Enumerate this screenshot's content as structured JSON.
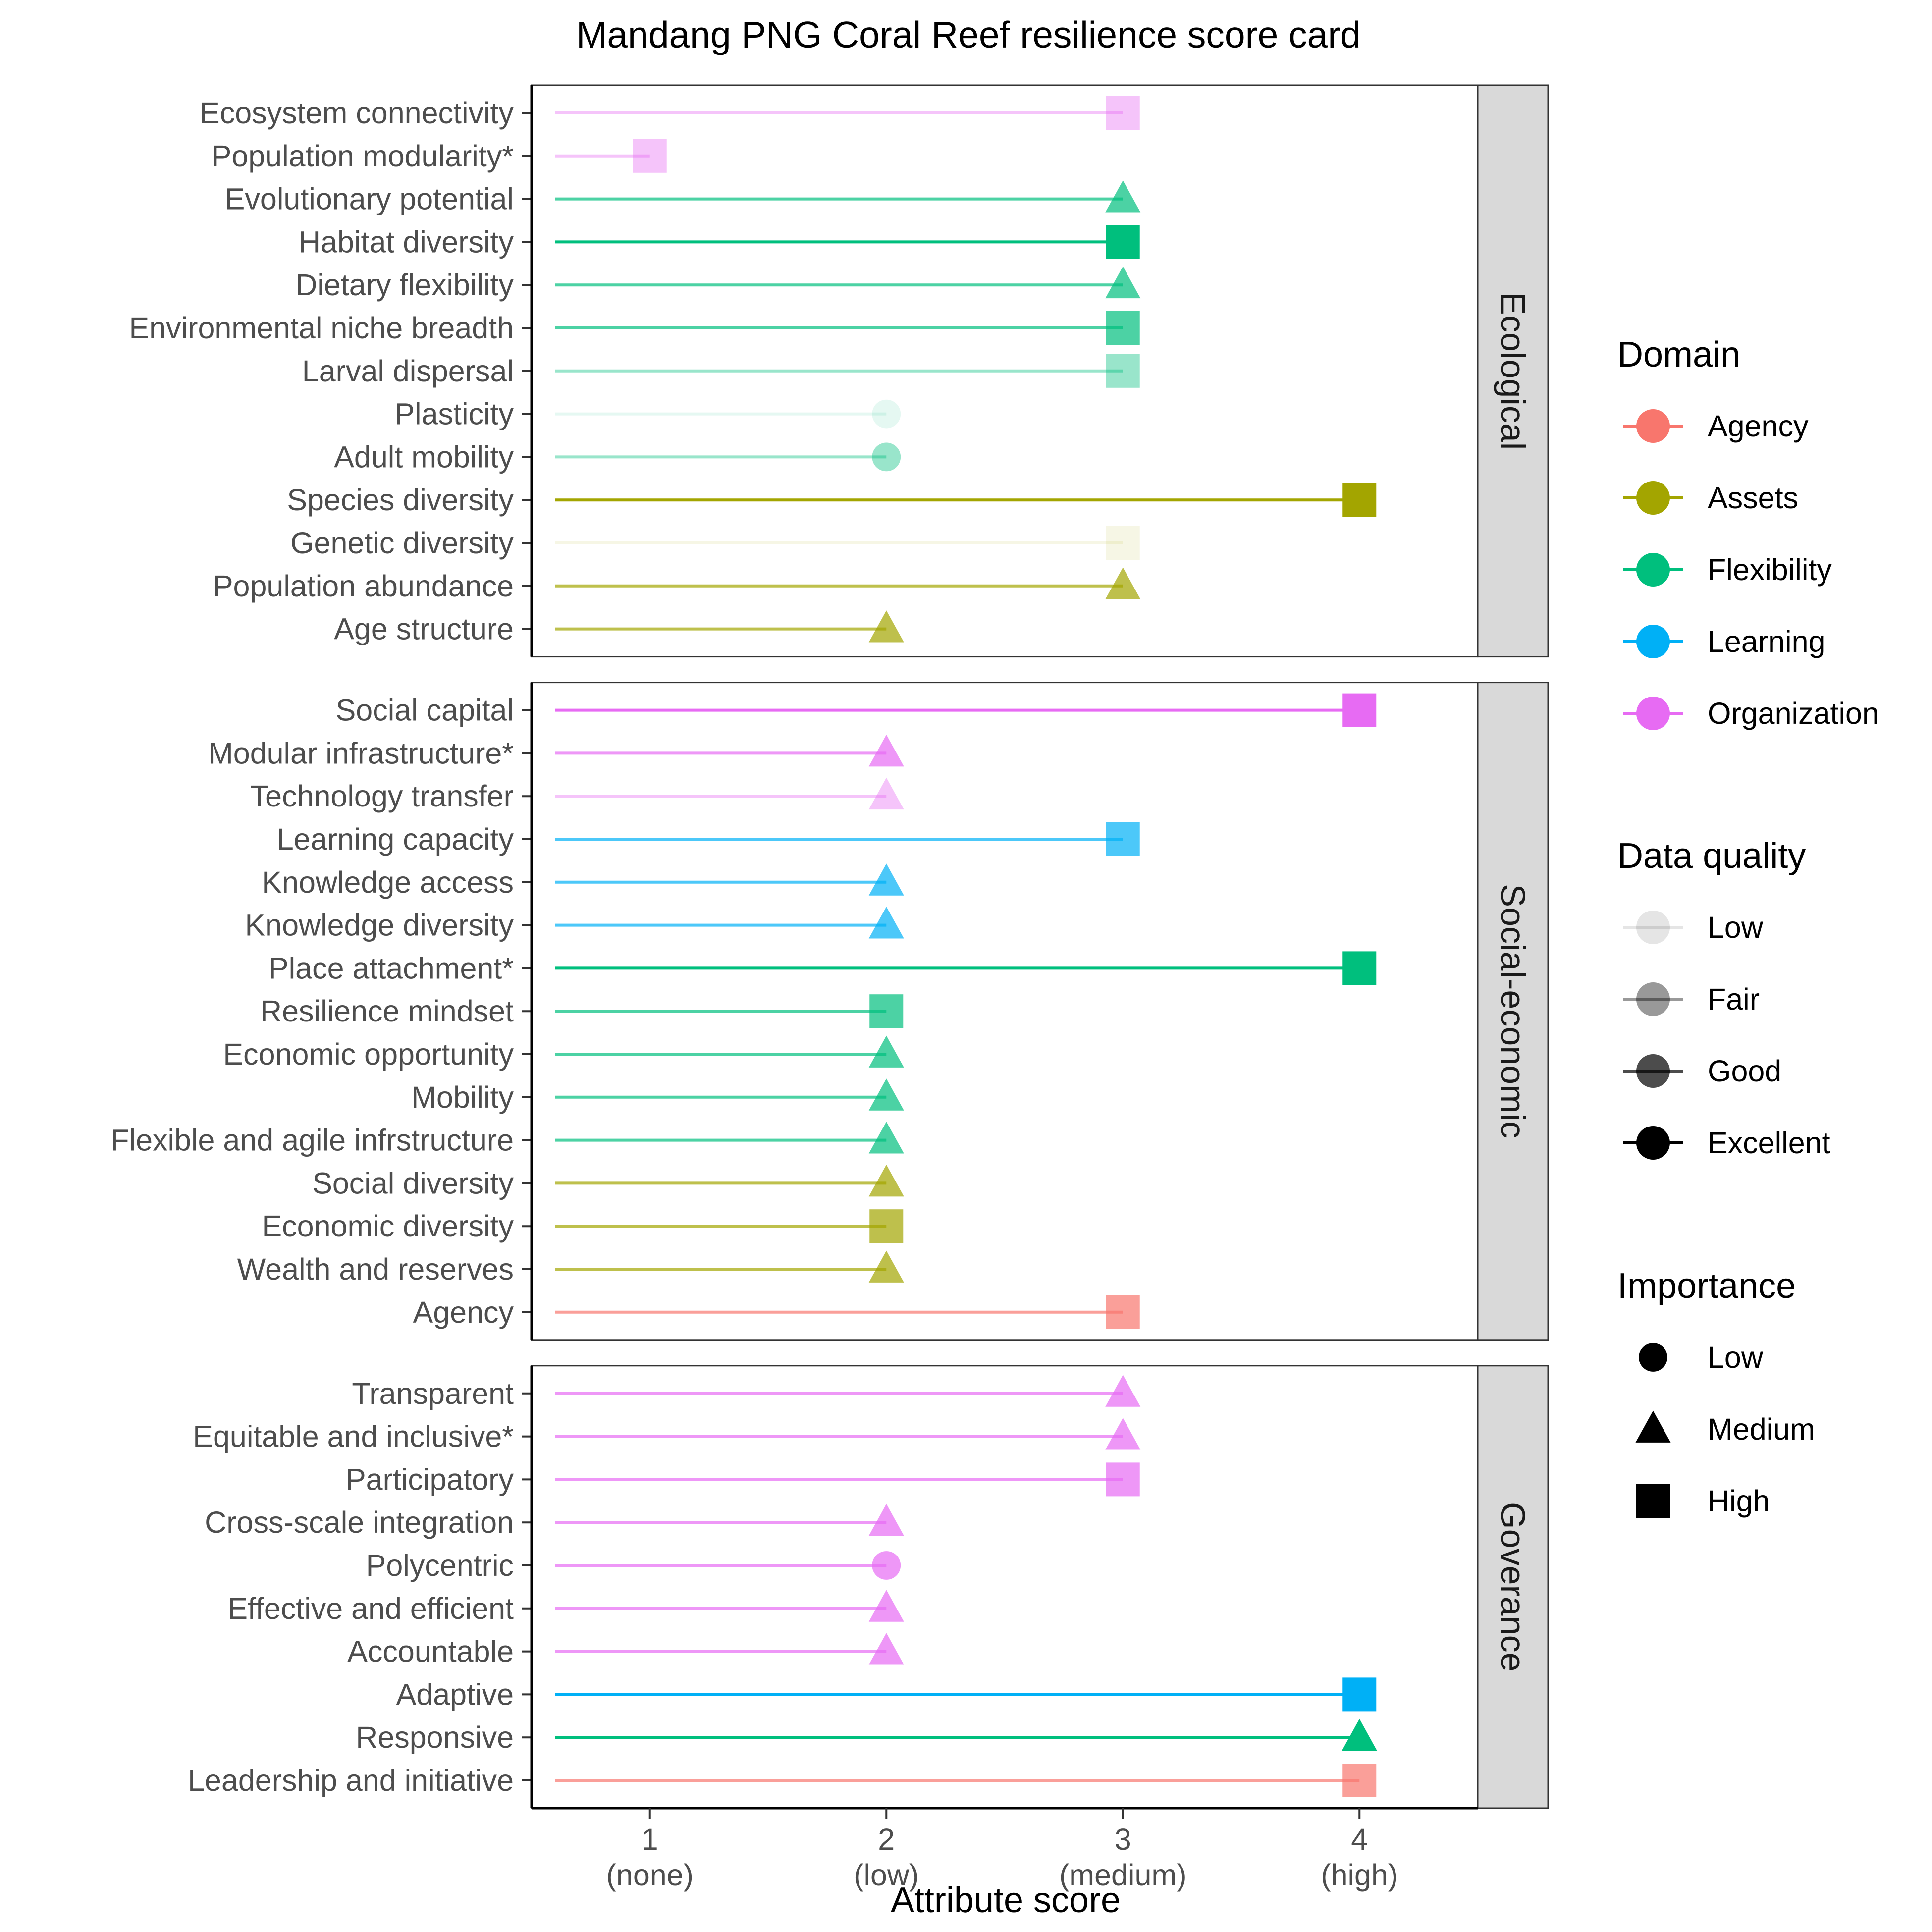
{
  "chart_data": {
    "type": "lollipop",
    "title": "Mandang PNG Coral Reef resilience score card",
    "xlabel": "Attribute score",
    "ylabel": "",
    "xlim": [
      0.5,
      4.5
    ],
    "x_ticks": [
      {
        "value": 1,
        "line1": "1",
        "line2": "(none)"
      },
      {
        "value": 2,
        "line1": "2",
        "line2": "(low)"
      },
      {
        "value": 3,
        "line1": "3",
        "line2": "(medium)"
      },
      {
        "value": 4,
        "line1": "4",
        "line2": "(high)"
      }
    ],
    "grid": false,
    "legend_position": "right",
    "domain_colors": {
      "Agency": "#F8766D",
      "Assets": "#A3A500",
      "Flexibility": "#00BF7D",
      "Learning": "#00B0F6",
      "Organization": "#E76BF3"
    },
    "quality_alpha": {
      "Low": 0.1,
      "Fair": 0.4,
      "Good": 0.7,
      "Excellent": 1.0
    },
    "legends": {
      "domain": {
        "title": "Domain",
        "items": [
          "Agency",
          "Assets",
          "Flexibility",
          "Learning",
          "Organization"
        ]
      },
      "quality": {
        "title": "Data quality",
        "items": [
          "Low",
          "Fair",
          "Good",
          "Excellent"
        ]
      },
      "importance": {
        "title": "Importance",
        "items": [
          {
            "label": "Low",
            "shape": "circle"
          },
          {
            "label": "Medium",
            "shape": "triangle"
          },
          {
            "label": "High",
            "shape": "square"
          }
        ]
      }
    },
    "panels": [
      {
        "name": "Ecological",
        "items": [
          {
            "label": "Ecosystem connectivity",
            "score": 3,
            "domain": "Organization",
            "quality": "Fair",
            "importance": "High"
          },
          {
            "label": "Population modularity*",
            "score": 1,
            "domain": "Organization",
            "quality": "Fair",
            "importance": "High"
          },
          {
            "label": "Evolutionary potential",
            "score": 3,
            "domain": "Flexibility",
            "quality": "Good",
            "importance": "Medium"
          },
          {
            "label": "Habitat diversity",
            "score": 3,
            "domain": "Flexibility",
            "quality": "Excellent",
            "importance": "High"
          },
          {
            "label": "Dietary flexibility",
            "score": 3,
            "domain": "Flexibility",
            "quality": "Good",
            "importance": "Medium"
          },
          {
            "label": "Environmental niche breadth",
            "score": 3,
            "domain": "Flexibility",
            "quality": "Good",
            "importance": "High"
          },
          {
            "label": "Larval dispersal",
            "score": 3,
            "domain": "Flexibility",
            "quality": "Fair",
            "importance": "High"
          },
          {
            "label": "Plasticity",
            "score": 2,
            "domain": "Flexibility",
            "quality": "Low",
            "importance": "Low"
          },
          {
            "label": "Adult mobility",
            "score": 2,
            "domain": "Flexibility",
            "quality": "Fair",
            "importance": "Low"
          },
          {
            "label": "Species diversity",
            "score": 4,
            "domain": "Assets",
            "quality": "Excellent",
            "importance": "High"
          },
          {
            "label": "Genetic diversity",
            "score": 3,
            "domain": "Assets",
            "quality": "Low",
            "importance": "High"
          },
          {
            "label": "Population abundance",
            "score": 3,
            "domain": "Assets",
            "quality": "Good",
            "importance": "Medium"
          },
          {
            "label": "Age structure",
            "score": 2,
            "domain": "Assets",
            "quality": "Good",
            "importance": "Medium"
          }
        ]
      },
      {
        "name": "Social-economic",
        "items": [
          {
            "label": "Social capital",
            "score": 4,
            "domain": "Organization",
            "quality": "Excellent",
            "importance": "High"
          },
          {
            "label": "Modular infrastructure*",
            "score": 2,
            "domain": "Organization",
            "quality": "Good",
            "importance": "Medium"
          },
          {
            "label": "Technology transfer",
            "score": 2,
            "domain": "Organization",
            "quality": "Fair",
            "importance": "Medium"
          },
          {
            "label": "Learning capacity",
            "score": 3,
            "domain": "Learning",
            "quality": "Good",
            "importance": "High"
          },
          {
            "label": "Knowledge access",
            "score": 2,
            "domain": "Learning",
            "quality": "Good",
            "importance": "Medium"
          },
          {
            "label": "Knowledge diversity",
            "score": 2,
            "domain": "Learning",
            "quality": "Good",
            "importance": "Medium"
          },
          {
            "label": "Place attachment*",
            "score": 4,
            "domain": "Flexibility",
            "quality": "Excellent",
            "importance": "High"
          },
          {
            "label": "Resilience mindset",
            "score": 2,
            "domain": "Flexibility",
            "quality": "Good",
            "importance": "High"
          },
          {
            "label": "Economic opportunity",
            "score": 2,
            "domain": "Flexibility",
            "quality": "Good",
            "importance": "Medium"
          },
          {
            "label": "Mobility",
            "score": 2,
            "domain": "Flexibility",
            "quality": "Good",
            "importance": "Medium"
          },
          {
            "label": "Flexible and agile infrstructure",
            "score": 2,
            "domain": "Flexibility",
            "quality": "Good",
            "importance": "Medium"
          },
          {
            "label": "Social diversity",
            "score": 2,
            "domain": "Assets",
            "quality": "Good",
            "importance": "Medium"
          },
          {
            "label": "Economic diversity",
            "score": 2,
            "domain": "Assets",
            "quality": "Good",
            "importance": "High"
          },
          {
            "label": "Wealth and reserves",
            "score": 2,
            "domain": "Assets",
            "quality": "Good",
            "importance": "Medium"
          },
          {
            "label": "Agency",
            "score": 3,
            "domain": "Agency",
            "quality": "Good",
            "importance": "High"
          }
        ]
      },
      {
        "name": "Goverance",
        "items": [
          {
            "label": "Transparent",
            "score": 3,
            "domain": "Organization",
            "quality": "Good",
            "importance": "Medium"
          },
          {
            "label": "Equitable and inclusive*",
            "score": 3,
            "domain": "Organization",
            "quality": "Good",
            "importance": "Medium"
          },
          {
            "label": "Participatory",
            "score": 3,
            "domain": "Organization",
            "quality": "Good",
            "importance": "High"
          },
          {
            "label": "Cross-scale integration",
            "score": 2,
            "domain": "Organization",
            "quality": "Good",
            "importance": "Medium"
          },
          {
            "label": "Polycentric",
            "score": 2,
            "domain": "Organization",
            "quality": "Good",
            "importance": "Low"
          },
          {
            "label": "Effective and efficient",
            "score": 2,
            "domain": "Organization",
            "quality": "Good",
            "importance": "Medium"
          },
          {
            "label": "Accountable",
            "score": 2,
            "domain": "Organization",
            "quality": "Good",
            "importance": "Medium"
          },
          {
            "label": "Adaptive",
            "score": 4,
            "domain": "Learning",
            "quality": "Excellent",
            "importance": "High"
          },
          {
            "label": "Responsive",
            "score": 4,
            "domain": "Flexibility",
            "quality": "Excellent",
            "importance": "Medium"
          },
          {
            "label": "Leadership and initiative",
            "score": 4,
            "domain": "Agency",
            "quality": "Good",
            "importance": "High"
          }
        ]
      }
    ]
  }
}
